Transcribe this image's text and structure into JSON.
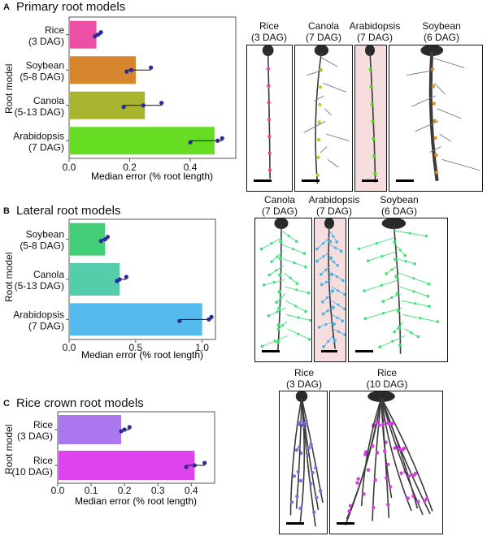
{
  "panels": [
    {
      "letter": "A",
      "title": "Primary root models",
      "ylabel": "Root model",
      "xlabel": "Median error (% root length)"
    },
    {
      "letter": "B",
      "title": "Lateral root models",
      "ylabel": "Root model",
      "xlabel": "Median error (% root length)"
    },
    {
      "letter": "C",
      "title": "Rice crown root models",
      "ylabel": "Root model",
      "xlabel": "Median error (% root length)"
    }
  ],
  "chart_data": [
    {
      "type": "bar",
      "orientation": "horizontal",
      "title": "Primary root models",
      "ylabel": "Root model",
      "xlabel": "Median error (% root length)",
      "xlim": [
        0,
        0.55
      ],
      "xticks": [
        "0.0",
        "0.2",
        "0.4"
      ],
      "categories": [
        "Rice\n(3 DAG)",
        "Soybean\n(5-8 DAG)",
        "Canola\n(5-13 DAG)",
        "Arabidopsis\n(7 DAG)"
      ],
      "values": [
        0.09,
        0.22,
        0.25,
        0.48
      ],
      "bar_colors": [
        "#ee4fa6",
        "#d8862e",
        "#a9b52e",
        "#66dd22"
      ],
      "points": [
        [
          0.085,
          0.095,
          0.105
        ],
        [
          0.19,
          0.205,
          0.27
        ],
        [
          0.18,
          0.245,
          0.305
        ],
        [
          0.4,
          0.49,
          0.505
        ]
      ]
    },
    {
      "type": "bar",
      "orientation": "horizontal",
      "title": "Lateral root models",
      "ylabel": "Root model",
      "xlabel": "Median error (% root length)",
      "xlim": [
        0,
        1.1
      ],
      "xticks": [
        "0.0",
        "0.5",
        "1.0"
      ],
      "categories": [
        "Soybean\n(5-8 DAG)",
        "Canola\n(5-13 DAG)",
        "Arabidopsis\n(7 DAG)"
      ],
      "values": [
        0.27,
        0.38,
        1.0
      ],
      "bar_colors": [
        "#44cc77",
        "#55ccaa",
        "#55bbee"
      ],
      "points": [
        [
          0.24,
          0.27,
          0.29
        ],
        [
          0.36,
          0.38,
          0.43
        ],
        [
          0.83,
          1.05,
          1.07
        ]
      ]
    },
    {
      "type": "bar",
      "orientation": "horizontal",
      "title": "Rice crown root models",
      "ylabel": "Root model",
      "xlabel": "Median error (% root length)",
      "xlim": [
        0,
        0.47
      ],
      "xticks": [
        "0.0",
        "0.1",
        "0.2",
        "0.3",
        "0.4"
      ],
      "categories": [
        "Rice\n(3 DAG)",
        "Rice\n(10 DAG)"
      ],
      "values": [
        0.19,
        0.41
      ],
      "bar_colors": [
        "#aa77ee",
        "#dd44ee"
      ],
      "points": [
        [
          0.19,
          0.2,
          0.215
        ],
        [
          0.385,
          0.41,
          0.44
        ]
      ]
    }
  ],
  "photos": [
    {
      "label": "Rice\n(3 DAG)",
      "color": "#e6479e",
      "bg": "#ffffff"
    },
    {
      "label": "Canola\n(7 DAG)",
      "color": "#b6d32b",
      "bg": "#ffffff"
    },
    {
      "label": "Arabidopsis\n(7 DAG)",
      "color": "#52d41c",
      "bg": "#f6dede"
    },
    {
      "label": "Soybean\n(6 DAG)",
      "color": "#e08b1e",
      "bg": "#ffffff"
    },
    {
      "label": "Canola\n(7 DAG)",
      "color": "#3fe07a",
      "bg": "#ffffff"
    },
    {
      "label": "Arabidopsis\n(7 DAG)",
      "color": "#4cb3e8",
      "bg": "#f6dede"
    },
    {
      "label": "Soybean\n(6 DAG)",
      "color": "#3fe070",
      "bg": "#ffffff"
    },
    {
      "label": "Rice\n(3 DAG)",
      "color": "#7e6ce8",
      "bg": "#ffffff"
    },
    {
      "label": "Rice\n(10 DAG)",
      "color": "#d33fe0",
      "bg": "#ffffff"
    }
  ]
}
